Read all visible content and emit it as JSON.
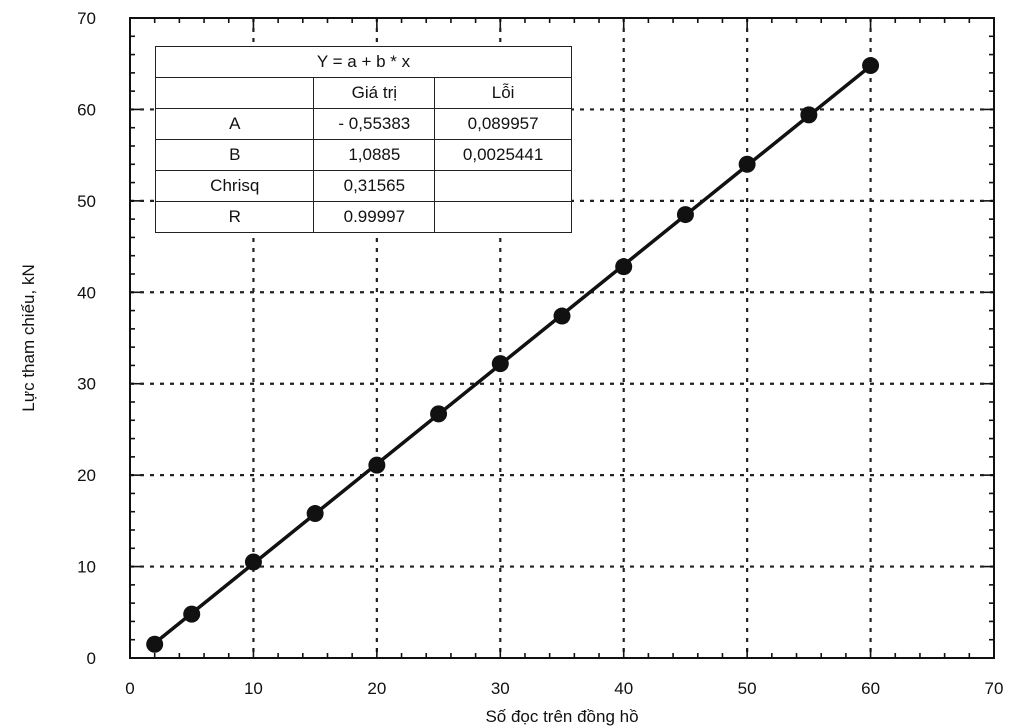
{
  "chart_data": {
    "type": "scatter",
    "xlabel": "Số đọc trên đồng hồ",
    "ylabel": "Lực tham chiếu, kN",
    "xlim": [
      0,
      70
    ],
    "ylim": [
      0,
      70
    ],
    "xticks": [
      "0",
      "10",
      "20",
      "30",
      "40",
      "50",
      "60",
      "70"
    ],
    "yticks": [
      "0",
      "10",
      "20",
      "30",
      "40",
      "50",
      "60",
      "70"
    ],
    "grid": true,
    "points": {
      "x": [
        2,
        5,
        10,
        15,
        20,
        25,
        30,
        35,
        40,
        45,
        50,
        55,
        60
      ],
      "y": [
        1.5,
        4.8,
        10.5,
        15.8,
        21.1,
        26.7,
        32.2,
        37.4,
        42.8,
        48.5,
        54.0,
        59.4,
        64.8
      ]
    },
    "fit_line": {
      "a": -0.55383,
      "b": 1.0885,
      "x_range": [
        1.5,
        60.5
      ]
    },
    "fit_table": {
      "title": "Y = a + b * x",
      "headers": [
        "",
        "Giá trị",
        "Lỗi"
      ],
      "rows": [
        [
          "A",
          "- 0,55383",
          "0,089957"
        ],
        [
          "B",
          "1,0885",
          "0,0025441"
        ],
        [
          "Chrisq",
          "0,31565",
          ""
        ],
        [
          "R",
          "0.99997",
          ""
        ]
      ]
    }
  }
}
